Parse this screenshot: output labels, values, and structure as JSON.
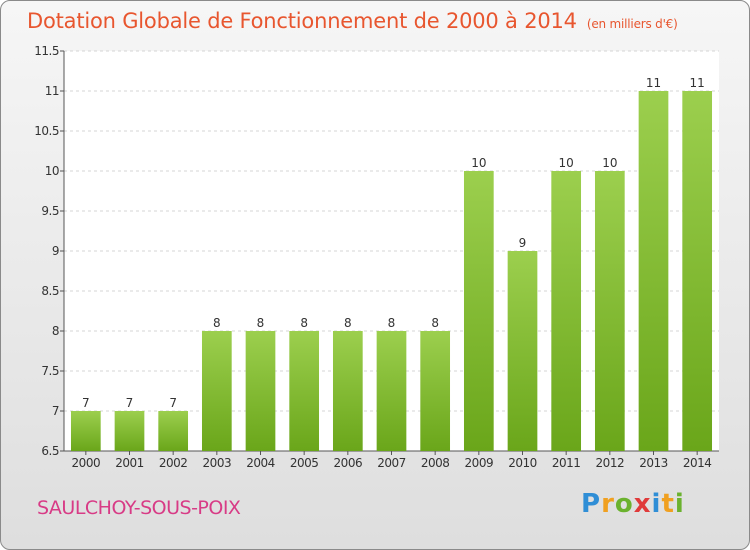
{
  "chart_data": {
    "type": "bar",
    "title": "Dotation Globale de Fonctionnement de 2000 à 2014",
    "subtitle": "(en milliers d'€)",
    "categories": [
      "2000",
      "2001",
      "2002",
      "2003",
      "2004",
      "2005",
      "2006",
      "2007",
      "2008",
      "2009",
      "2010",
      "2011",
      "2012",
      "2013",
      "2014"
    ],
    "values": [
      7,
      7,
      7,
      8,
      8,
      8,
      8,
      8,
      8,
      10,
      9,
      10,
      10,
      11,
      11
    ],
    "data_labels": [
      "7",
      "7",
      "7",
      "8",
      "8",
      "8",
      "8",
      "8",
      "8",
      "10",
      "9",
      "10",
      "10",
      "11",
      "11"
    ],
    "ylim": [
      6.5,
      11.5
    ],
    "yticks": [
      6.5,
      7,
      7.5,
      8,
      8.5,
      9,
      9.5,
      10,
      10.5,
      11,
      11.5
    ],
    "ytick_labels": [
      "6.5",
      "7",
      "7.5",
      "8",
      "8.5",
      "9",
      "9.5",
      "10",
      "10.5",
      "11",
      "11.5"
    ],
    "grid": true,
    "bar_color_light": "#9ccf4e",
    "bar_color_dark": "#6aa61a"
  },
  "commune": "SAULCHOY-SOUS-POIX",
  "logo": {
    "letters": [
      "P",
      "r",
      "o",
      "x",
      "i",
      "t",
      "i"
    ],
    "colors": [
      "#2f8ed6",
      "#f0a020",
      "#6bb22e",
      "#e03a3a",
      "#2f8ed6",
      "#f0a020",
      "#6bb22e"
    ]
  }
}
